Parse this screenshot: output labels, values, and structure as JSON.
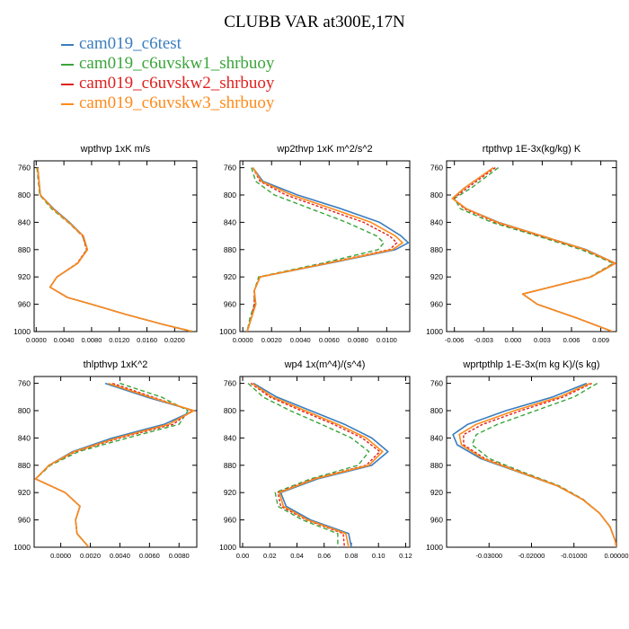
{
  "title": "CLUBB VAR at300E,17N",
  "legend": [
    {
      "name": "cam019_c6test",
      "color": "#3a7ebf"
    },
    {
      "name": "cam019_c6uvskw1_shrbuoy",
      "color": "#3aa53a"
    },
    {
      "name": "cam019_c6uvskw2_shrbuoy",
      "color": "#e02020"
    },
    {
      "name": "cam019_c6uvskw3_shrbuoy",
      "color": "#ff8a1a"
    }
  ],
  "chart_data": [
    {
      "type": "line",
      "title": "wpthvp  1xK m/s",
      "xlim": [
        -0.0003,
        0.0232
      ],
      "ylim": [
        750,
        1000
      ],
      "xticks": [
        "0.0000",
        "0.0040",
        "0.0080",
        "0.0120",
        "0.0160",
        "0.0200"
      ],
      "yticks": [
        "760",
        "800",
        "840",
        "880",
        "920",
        "960",
        "1000"
      ],
      "y": [
        760,
        800,
        820,
        840,
        860,
        880,
        900,
        920,
        935,
        950,
        960,
        975,
        990,
        1000
      ],
      "series": [
        {
          "name": "cam019_c6test",
          "x": [
            0.0002,
            0.0006,
            0.0025,
            0.0048,
            0.0068,
            0.0074,
            0.006,
            0.003,
            0.002,
            0.0045,
            0.008,
            0.013,
            0.0185,
            0.0225
          ]
        },
        {
          "name": "cam019_c6uvskw1_shrbuoy",
          "x": [
            0.0001,
            0.0005,
            0.0022,
            0.0046,
            0.0067,
            0.0073,
            0.006,
            0.003,
            0.002,
            0.0045,
            0.008,
            0.013,
            0.0185,
            0.0228
          ]
        },
        {
          "name": "cam019_c6uvskw2_shrbuoy",
          "x": [
            0.0002,
            0.0006,
            0.0024,
            0.0047,
            0.0067,
            0.0073,
            0.0059,
            0.003,
            0.002,
            0.0045,
            0.008,
            0.013,
            0.0185,
            0.0226
          ]
        },
        {
          "name": "cam019_c6uvskw3_shrbuoy",
          "x": [
            0.0002,
            0.0006,
            0.0024,
            0.0047,
            0.0068,
            0.0074,
            0.006,
            0.003,
            0.002,
            0.0045,
            0.008,
            0.013,
            0.0185,
            0.0226
          ]
        }
      ]
    },
    {
      "type": "line",
      "title": "wp2thvp  1xK m^2/s^2",
      "xlim": [
        -0.0002,
        0.0116
      ],
      "ylim": [
        750,
        1000
      ],
      "xticks": [
        "0.0000",
        "0.0020",
        "0.0040",
        "0.0060",
        "0.0080",
        "0.0100"
      ],
      "yticks": [
        "760",
        "800",
        "840",
        "880",
        "920",
        "960",
        "1000"
      ],
      "y": [
        760,
        780,
        800,
        820,
        840,
        860,
        870,
        880,
        900,
        920,
        940,
        960,
        980,
        1000
      ],
      "series": [
        {
          "name": "cam019_c6test",
          "x": [
            0.0007,
            0.0014,
            0.0038,
            0.0068,
            0.0095,
            0.011,
            0.0115,
            0.0106,
            0.006,
            0.0012,
            0.0008,
            0.0009,
            0.0006,
            0.0003
          ]
        },
        {
          "name": "cam019_c6uvskw1_shrbuoy",
          "x": [
            0.0006,
            0.0009,
            0.0022,
            0.0047,
            0.0072,
            0.0093,
            0.0098,
            0.0094,
            0.0055,
            0.0011,
            0.0008,
            0.0008,
            0.0005,
            0.0003
          ]
        },
        {
          "name": "cam019_c6uvskw2_shrbuoy",
          "x": [
            0.0007,
            0.0012,
            0.003,
            0.0057,
            0.0084,
            0.0102,
            0.0107,
            0.0102,
            0.0058,
            0.0012,
            0.0008,
            0.0008,
            0.0006,
            0.0003
          ]
        },
        {
          "name": "cam019_c6uvskw3_shrbuoy",
          "x": [
            0.0007,
            0.0013,
            0.0034,
            0.0062,
            0.0089,
            0.0106,
            0.0111,
            0.0104,
            0.0059,
            0.0012,
            0.0008,
            0.0009,
            0.0006,
            0.0003
          ]
        }
      ]
    },
    {
      "type": "line",
      "title": "rtpthvp  1E-3x(kg/kg) K",
      "xlim": [
        -0.0068,
        0.0106
      ],
      "ylim": [
        750,
        1000
      ],
      "xticks": [
        "-0.006",
        "-0.003",
        "0.000",
        "0.003",
        "0.006",
        "0.009"
      ],
      "yticks": [
        "760",
        "800",
        "840",
        "880",
        "920",
        "960",
        "1000"
      ],
      "y": [
        760,
        790,
        805,
        820,
        840,
        860,
        880,
        900,
        920,
        945,
        960,
        980,
        1000
      ],
      "series": [
        {
          "name": "cam019_c6test",
          "x": [
            -0.002,
            -0.005,
            -0.0062,
            -0.0048,
            -0.0015,
            0.003,
            0.0075,
            0.0105,
            0.008,
            0.001,
            0.0025,
            0.0065,
            0.0102
          ]
        },
        {
          "name": "cam019_c6uvskw1_shrbuoy",
          "x": [
            -0.0015,
            -0.0043,
            -0.006,
            -0.0054,
            -0.0022,
            0.0025,
            0.007,
            0.0103,
            0.0079,
            0.001,
            0.0025,
            0.0065,
            0.0102
          ]
        },
        {
          "name": "cam019_c6uvskw2_shrbuoy",
          "x": [
            -0.0018,
            -0.0047,
            -0.0061,
            -0.005,
            -0.0018,
            0.0028,
            0.0073,
            0.0104,
            0.008,
            0.001,
            0.0025,
            0.0065,
            0.0102
          ]
        },
        {
          "name": "cam019_c6uvskw3_shrbuoy",
          "x": [
            -0.002,
            -0.005,
            -0.0062,
            -0.0048,
            -0.0016,
            0.003,
            0.0074,
            0.0105,
            0.008,
            0.001,
            0.0025,
            0.0065,
            0.0102
          ]
        }
      ]
    },
    {
      "type": "line",
      "title": "thlpthvp  1xK^2",
      "xlim": [
        -0.0018,
        0.0092
      ],
      "ylim": [
        750,
        1000
      ],
      "xticks": [
        "0.0000",
        "0.0020",
        "0.0040",
        "0.0060",
        "0.0080"
      ],
      "yticks": [
        "760",
        "800",
        "840",
        "880",
        "920",
        "960",
        "1000"
      ],
      "y": [
        760,
        780,
        800,
        820,
        840,
        860,
        880,
        900,
        920,
        940,
        960,
        980,
        1000
      ],
      "series": [
        {
          "name": "cam019_c6test",
          "x": [
            0.003,
            0.0058,
            0.009,
            0.007,
            0.0035,
            0.0008,
            -0.0008,
            -0.0017,
            0.0003,
            0.0013,
            0.001,
            0.0011,
            0.0019
          ]
        },
        {
          "name": "cam019_c6uvskw1_shrbuoy",
          "x": [
            0.004,
            0.0068,
            0.0086,
            0.008,
            0.0045,
            0.0012,
            -0.0007,
            -0.0017,
            0.0003,
            0.0013,
            0.001,
            0.0011,
            0.0019
          ]
        },
        {
          "name": "cam019_c6uvskw2_shrbuoy",
          "x": [
            0.0035,
            0.0062,
            0.0089,
            0.0076,
            0.004,
            0.001,
            -0.0008,
            -0.0017,
            0.0003,
            0.0013,
            0.001,
            0.0011,
            0.0019
          ]
        },
        {
          "name": "cam019_c6uvskw3_shrbuoy",
          "x": [
            0.0032,
            0.006,
            0.009,
            0.0073,
            0.0038,
            0.0009,
            -0.0008,
            -0.0017,
            0.0003,
            0.0013,
            0.001,
            0.0011,
            0.0019
          ]
        }
      ]
    },
    {
      "type": "line",
      "title": "wp4  1x(m^4)/(s^4)",
      "xlim": [
        -0.002,
        0.123
      ],
      "ylim": [
        750,
        1000
      ],
      "xticks": [
        "0.00",
        "0.02",
        "0.04",
        "0.06",
        "0.08",
        "0.10",
        "0.12"
      ],
      "yticks": [
        "760",
        "800",
        "840",
        "880",
        "920",
        "960",
        "1000"
      ],
      "y": [
        760,
        780,
        800,
        820,
        840,
        860,
        880,
        900,
        920,
        940,
        960,
        980,
        1000
      ],
      "series": [
        {
          "name": "cam019_c6test",
          "x": [
            0.008,
            0.025,
            0.05,
            0.075,
            0.095,
            0.107,
            0.095,
            0.055,
            0.028,
            0.032,
            0.05,
            0.078,
            0.08
          ]
        },
        {
          "name": "cam019_c6uvskw1_shrbuoy",
          "x": [
            0.004,
            0.015,
            0.035,
            0.058,
            0.08,
            0.093,
            0.085,
            0.05,
            0.024,
            0.026,
            0.044,
            0.07,
            0.07
          ]
        },
        {
          "name": "cam019_c6uvskw2_shrbuoy",
          "x": [
            0.006,
            0.02,
            0.043,
            0.067,
            0.088,
            0.101,
            0.091,
            0.052,
            0.026,
            0.028,
            0.047,
            0.074,
            0.075
          ]
        },
        {
          "name": "cam019_c6uvskw3_shrbuoy",
          "x": [
            0.007,
            0.022,
            0.046,
            0.07,
            0.091,
            0.103,
            0.093,
            0.053,
            0.027,
            0.03,
            0.048,
            0.076,
            0.078
          ]
        }
      ]
    },
    {
      "type": "line",
      "title": "wprtpthlp  1-E-3x(m kg K)/(s kg)",
      "xlim": [
        -0.04,
        0.0
      ],
      "ylim": [
        750,
        1000
      ],
      "xticks": [
        "-0.03000",
        "-0.02000",
        "-0.01000",
        "0.00000"
      ],
      "yticks": [
        "760",
        "800",
        "840",
        "880",
        "920",
        "960",
        "1000"
      ],
      "y": [
        760,
        780,
        800,
        820,
        835,
        850,
        870,
        890,
        910,
        930,
        950,
        970,
        990,
        1000
      ],
      "series": [
        {
          "name": "cam019_c6test",
          "x": [
            -0.007,
            -0.015,
            -0.026,
            -0.035,
            -0.0385,
            -0.0375,
            -0.032,
            -0.023,
            -0.014,
            -0.008,
            -0.004,
            -0.0015,
            -0.0003,
            0.0
          ]
        },
        {
          "name": "cam019_c6uvskw1_shrbuoy",
          "x": [
            -0.0045,
            -0.01,
            -0.019,
            -0.028,
            -0.033,
            -0.034,
            -0.03,
            -0.022,
            -0.0135,
            -0.0078,
            -0.004,
            -0.0015,
            -0.0003,
            0.0
          ]
        },
        {
          "name": "cam019_c6uvskw2_shrbuoy",
          "x": [
            -0.0058,
            -0.0125,
            -0.0225,
            -0.0315,
            -0.036,
            -0.036,
            -0.031,
            -0.0225,
            -0.0138,
            -0.0079,
            -0.004,
            -0.0015,
            -0.0003,
            0.0
          ]
        },
        {
          "name": "cam019_c6uvskw3_shrbuoy",
          "x": [
            -0.0062,
            -0.0135,
            -0.024,
            -0.033,
            -0.037,
            -0.0365,
            -0.0315,
            -0.0228,
            -0.0139,
            -0.008,
            -0.004,
            -0.0015,
            -0.0003,
            0.0
          ]
        }
      ]
    }
  ]
}
